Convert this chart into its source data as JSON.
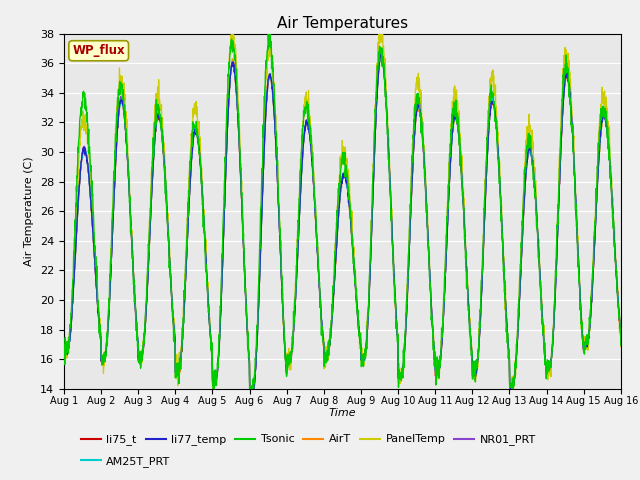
{
  "title": "Air Temperatures",
  "xlabel": "Time",
  "ylabel": "Air Temperature (C)",
  "ylim": [
    14,
    38
  ],
  "yticks": [
    14,
    16,
    18,
    20,
    22,
    24,
    26,
    28,
    30,
    32,
    34,
    36,
    38
  ],
  "fig_bg_color": "#f0f0f0",
  "plot_bg_color": "#e8e8e8",
  "legend_entries": [
    "li75_t",
    "li77_temp",
    "Tsonic",
    "AirT",
    "PanelTemp",
    "NR01_PRT",
    "AM25T_PRT"
  ],
  "legend_colors": [
    "#cc0000",
    "#2222cc",
    "#00cc00",
    "#ff8800",
    "#cccc00",
    "#8844cc",
    "#00cccc"
  ],
  "legend_label": "WP_flux",
  "legend_label_color": "#aa0000",
  "legend_label_bg": "#ffffcc",
  "n_days": 15,
  "pts_per_day": 144,
  "day_max_base": [
    30.2,
    33.5,
    32.5,
    31.5,
    36.0,
    35.2,
    32.0,
    28.5,
    36.5,
    33.2,
    32.5,
    33.5,
    30.2,
    35.2,
    32.5
  ],
  "day_min_base": [
    16.5,
    16.0,
    16.2,
    15.2,
    14.5,
    13.8,
    16.0,
    16.2,
    16.0,
    14.8,
    15.2,
    15.0,
    14.2,
    15.5,
    17.0
  ],
  "tsonic_extra_max": [
    3.5,
    1.0,
    0.5,
    0.5,
    1.5,
    2.5,
    1.2,
    1.0,
    0.5,
    0.5,
    0.5,
    0.5,
    0.5,
    0.5,
    0.5
  ],
  "panel_extra_max": [
    2.0,
    1.5,
    1.5,
    1.5,
    2.0,
    2.0,
    1.5,
    1.5,
    1.5,
    1.5,
    1.5,
    1.5,
    1.5,
    1.5,
    1.5
  ]
}
